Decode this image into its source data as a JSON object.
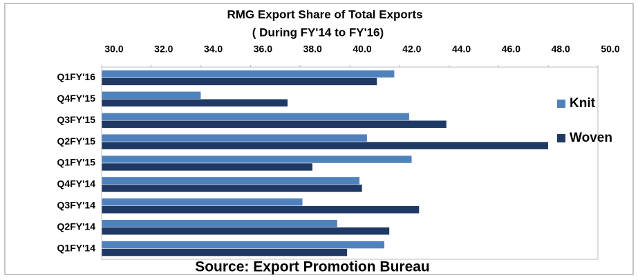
{
  "chart_data": {
    "type": "bar",
    "orientation": "horizontal",
    "title": "RMG  Export Share of Total Exports",
    "subtitle": "( During FY'14  to FY'16)",
    "source": "Source: Export Promotion Bureau",
    "categories": [
      "Q1FY'16",
      "Q4FY'15",
      "Q3FY'15",
      "Q2FY'15",
      "Q1FY'15",
      "Q4FY'14",
      "Q3FY'14",
      "Q2FY'14",
      "Q1FY'14"
    ],
    "series": [
      {
        "name": "Knit",
        "color": "#4f81bd",
        "values": [
          41.8,
          34.0,
          42.4,
          40.7,
          42.5,
          40.4,
          38.1,
          39.5,
          41.4
        ]
      },
      {
        "name": "Woven",
        "color": "#1f3864",
        "values": [
          41.1,
          37.5,
          43.9,
          48.0,
          38.5,
          40.5,
          42.8,
          41.6,
          39.9
        ]
      }
    ],
    "xlim": [
      30,
      50
    ],
    "xticks": [
      {
        "value": 30,
        "label": "30.0"
      },
      {
        "value": 32,
        "label": "32.0"
      },
      {
        "value": 34,
        "label": "34.0"
      },
      {
        "value": 36,
        "label": "36.0"
      },
      {
        "value": 38,
        "label": "38.0"
      },
      {
        "value": 40,
        "label": "40.0"
      },
      {
        "value": 42,
        "label": "42.0"
      },
      {
        "value": 44,
        "label": "44.0"
      },
      {
        "value": 46,
        "label": "46.0"
      },
      {
        "value": 48,
        "label": "48.0"
      },
      {
        "value": 50,
        "label": "50.0"
      }
    ],
    "legend": "right"
  }
}
